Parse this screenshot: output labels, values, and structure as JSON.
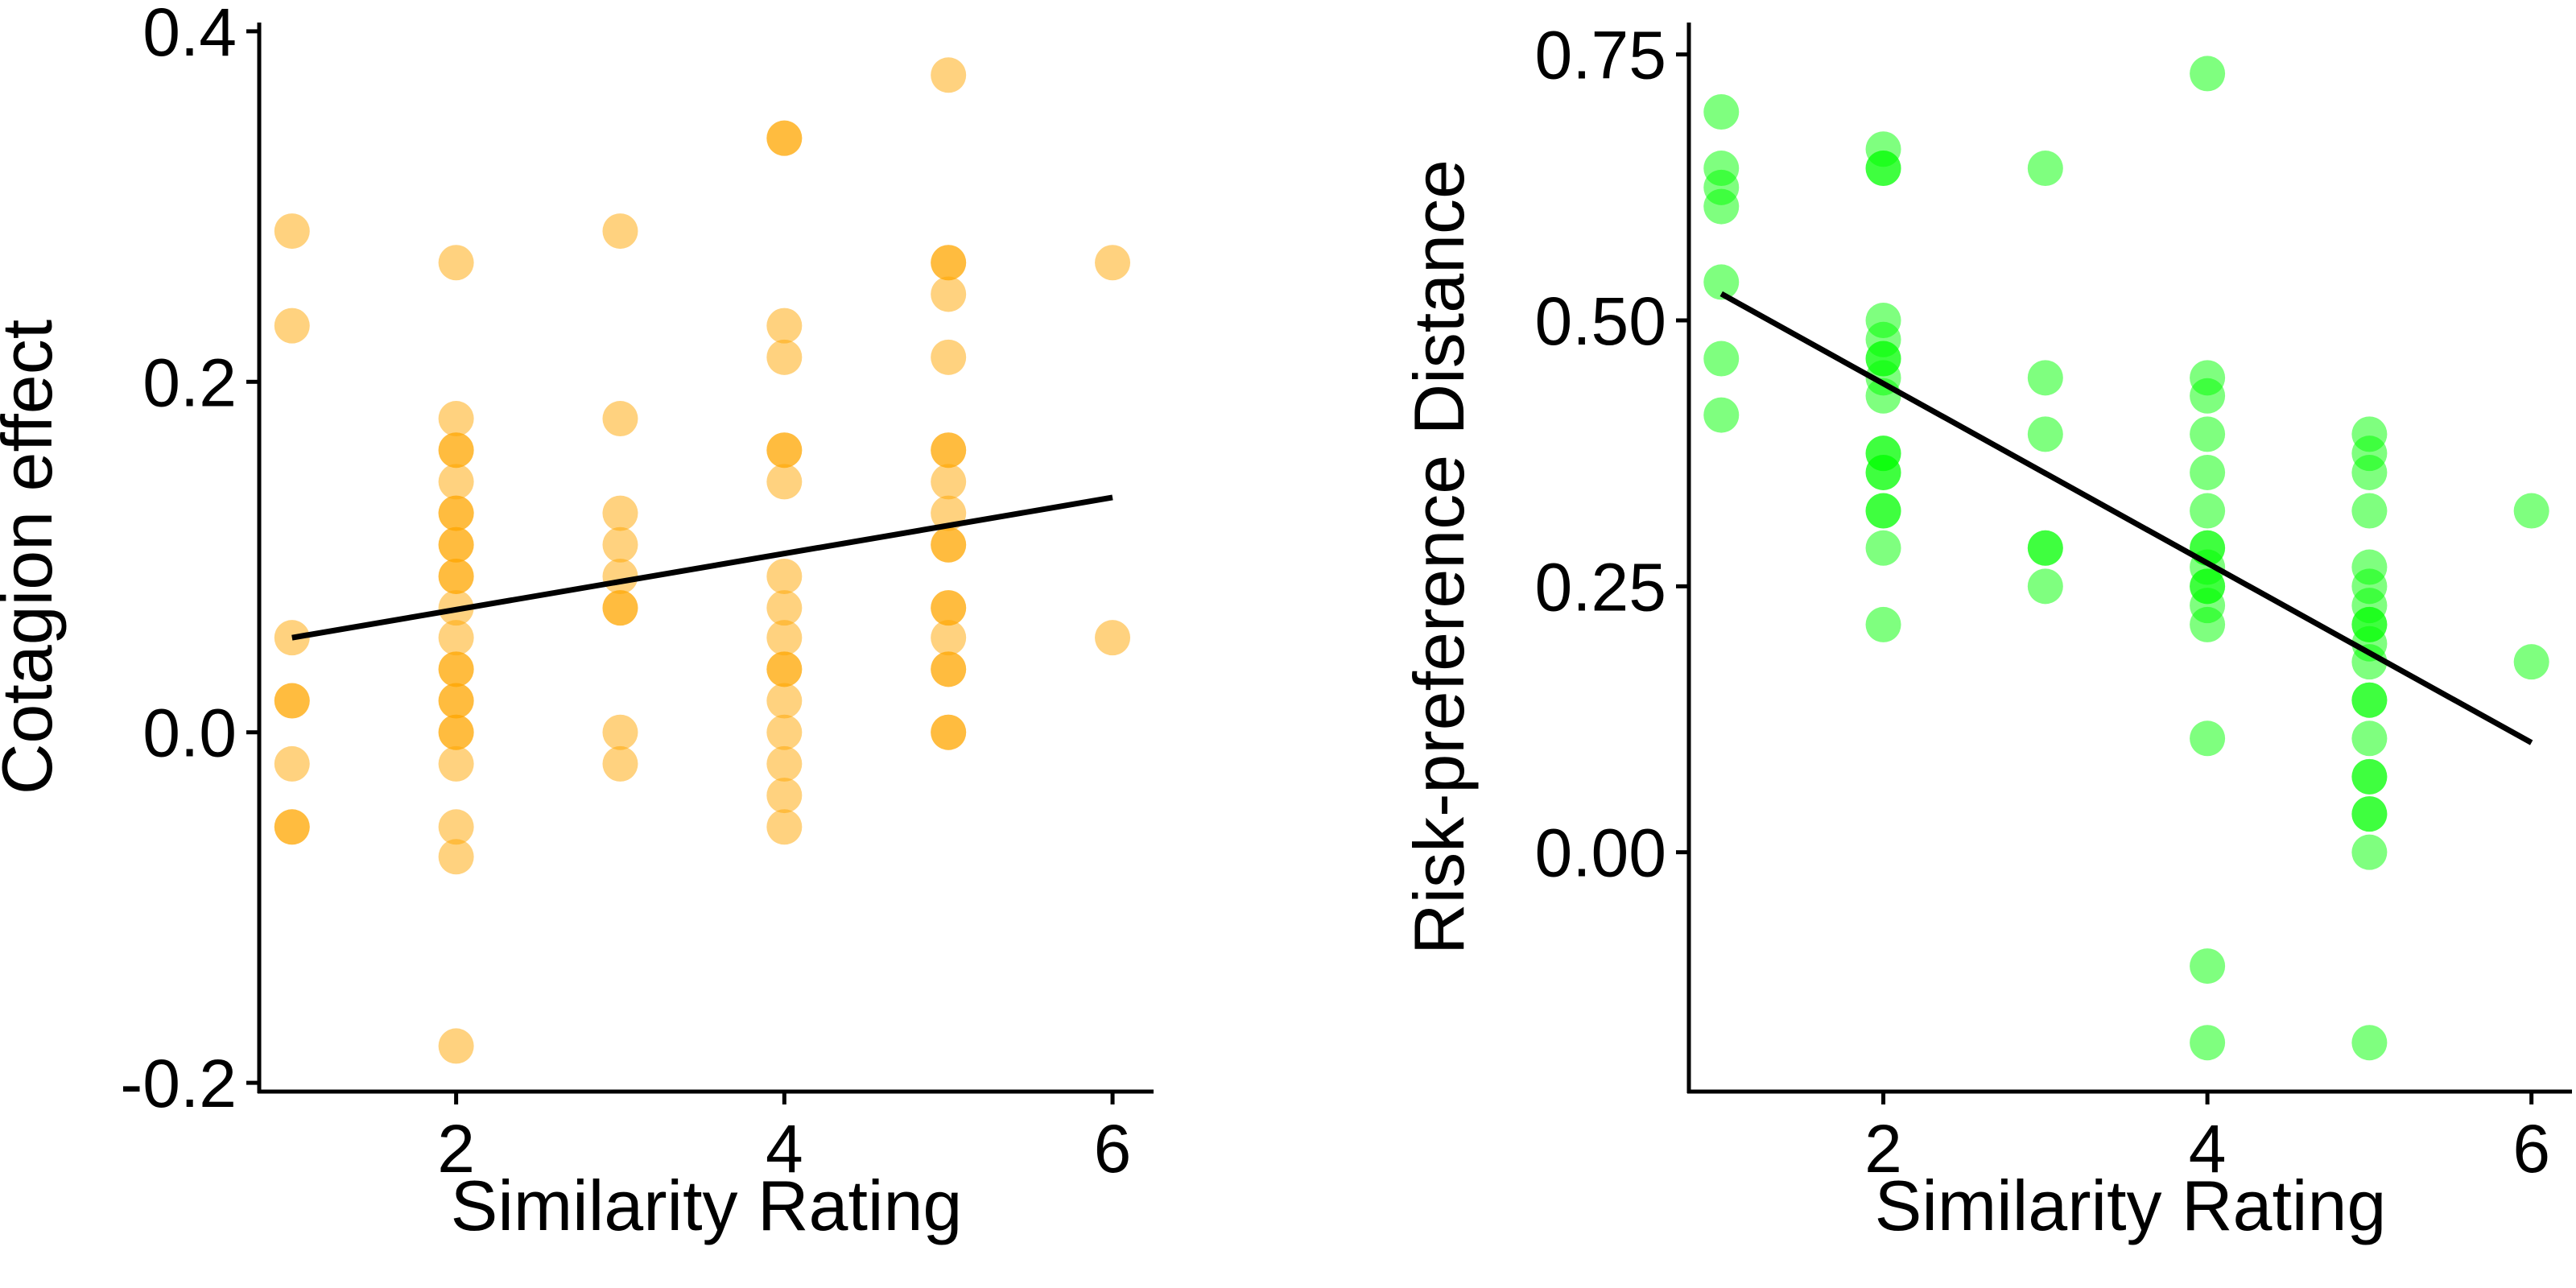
{
  "chart_data": [
    {
      "type": "scatter",
      "title": "",
      "xlabel": "Similarity Rating",
      "ylabel": "Cotagion effect",
      "xlim": [
        0.8,
        6.25
      ],
      "ylim": [
        -0.205,
        0.405
      ],
      "x_ticks": [
        2,
        4,
        6
      ],
      "y_ticks": [
        -0.2,
        0.0,
        0.2,
        0.4
      ],
      "y_tick_labels": [
        "-0.2",
        "0.0",
        "0.2",
        "0.4"
      ],
      "grid": false,
      "point_color": "#FFA500",
      "point_opacity": 0.5,
      "points": [
        [
          1,
          0.286
        ],
        [
          1,
          0.232
        ],
        [
          1,
          0.054
        ],
        [
          1,
          0.018
        ],
        [
          1,
          0.018
        ],
        [
          1,
          -0.018
        ],
        [
          1,
          -0.054
        ],
        [
          1,
          -0.054
        ],
        [
          2,
          0.268
        ],
        [
          2,
          0.179
        ],
        [
          2,
          0.161
        ],
        [
          2,
          0.161
        ],
        [
          2,
          0.143
        ],
        [
          2,
          0.125
        ],
        [
          2,
          0.125
        ],
        [
          2,
          0.107
        ],
        [
          2,
          0.107
        ],
        [
          2,
          0.089
        ],
        [
          2,
          0.089
        ],
        [
          2,
          0.071
        ],
        [
          2,
          0.054
        ],
        [
          2,
          0.036
        ],
        [
          2,
          0.036
        ],
        [
          2,
          0.018
        ],
        [
          2,
          0.018
        ],
        [
          2,
          0.0
        ],
        [
          2,
          0.0
        ],
        [
          2,
          -0.018
        ],
        [
          2,
          -0.054
        ],
        [
          2,
          -0.071
        ],
        [
          2,
          -0.179
        ],
        [
          3,
          0.286
        ],
        [
          3,
          0.179
        ],
        [
          3,
          0.125
        ],
        [
          3,
          0.107
        ],
        [
          3,
          0.089
        ],
        [
          3,
          0.071
        ],
        [
          3,
          0.071
        ],
        [
          3,
          0.0
        ],
        [
          3,
          -0.018
        ],
        [
          4,
          0.339
        ],
        [
          4,
          0.339
        ],
        [
          4,
          0.232
        ],
        [
          4,
          0.214
        ],
        [
          4,
          0.161
        ],
        [
          4,
          0.161
        ],
        [
          4,
          0.143
        ],
        [
          4,
          0.089
        ],
        [
          4,
          0.071
        ],
        [
          4,
          0.054
        ],
        [
          4,
          0.036
        ],
        [
          4,
          0.036
        ],
        [
          4,
          0.018
        ],
        [
          4,
          0.0
        ],
        [
          4,
          -0.018
        ],
        [
          4,
          -0.036
        ],
        [
          4,
          -0.054
        ],
        [
          5,
          0.375
        ],
        [
          5,
          0.268
        ],
        [
          5,
          0.268
        ],
        [
          5,
          0.25
        ],
        [
          5,
          0.214
        ],
        [
          5,
          0.161
        ],
        [
          5,
          0.161
        ],
        [
          5,
          0.143
        ],
        [
          5,
          0.125
        ],
        [
          5,
          0.107
        ],
        [
          5,
          0.107
        ],
        [
          5,
          0.071
        ],
        [
          5,
          0.071
        ],
        [
          5,
          0.054
        ],
        [
          5,
          0.036
        ],
        [
          5,
          0.036
        ],
        [
          5,
          0.0
        ],
        [
          5,
          0.0
        ],
        [
          6,
          0.268
        ],
        [
          6,
          0.054
        ]
      ],
      "trend_line": {
        "x": [
          1,
          6
        ],
        "y": [
          0.054,
          0.134
        ]
      }
    },
    {
      "type": "scatter",
      "title": "",
      "xlabel": "Similarity Rating",
      "ylabel": "Risk-preference Distance",
      "xlim": [
        0.8,
        6.25
      ],
      "ylim": [
        -0.225,
        0.78
      ],
      "x_ticks": [
        2,
        4,
        6
      ],
      "y_ticks": [
        0.0,
        0.25,
        0.5,
        0.75
      ],
      "y_tick_labels": [
        "0.00",
        "0.25",
        "0.50",
        "0.75"
      ],
      "grid": false,
      "point_color": "#00FF00",
      "point_opacity": 0.5,
      "points": [
        [
          1,
          0.696
        ],
        [
          1,
          0.643
        ],
        [
          1,
          0.625
        ],
        [
          1,
          0.607
        ],
        [
          1,
          0.536
        ],
        [
          1,
          0.464
        ],
        [
          1,
          0.411
        ],
        [
          2,
          0.661
        ],
        [
          2,
          0.643
        ],
        [
          2,
          0.643
        ],
        [
          2,
          0.5
        ],
        [
          2,
          0.482
        ],
        [
          2,
          0.464
        ],
        [
          2,
          0.464
        ],
        [
          2,
          0.446
        ],
        [
          2,
          0.429
        ],
        [
          2,
          0.375
        ],
        [
          2,
          0.375
        ],
        [
          2,
          0.357
        ],
        [
          2,
          0.357
        ],
        [
          2,
          0.321
        ],
        [
          2,
          0.321
        ],
        [
          2,
          0.286
        ],
        [
          2,
          0.214
        ],
        [
          3,
          0.643
        ],
        [
          3,
          0.446
        ],
        [
          3,
          0.393
        ],
        [
          3,
          0.286
        ],
        [
          3,
          0.286
        ],
        [
          3,
          0.25
        ],
        [
          4,
          0.732
        ],
        [
          4,
          0.446
        ],
        [
          4,
          0.429
        ],
        [
          4,
          0.393
        ],
        [
          4,
          0.357
        ],
        [
          4,
          0.321
        ],
        [
          4,
          0.286
        ],
        [
          4,
          0.286
        ],
        [
          4,
          0.268
        ],
        [
          4,
          0.25
        ],
        [
          4,
          0.25
        ],
        [
          4,
          0.232
        ],
        [
          4,
          0.214
        ],
        [
          4,
          0.107
        ],
        [
          4,
          -0.107
        ],
        [
          4,
          -0.179
        ],
        [
          5,
          0.393
        ],
        [
          5,
          0.375
        ],
        [
          5,
          0.357
        ],
        [
          5,
          0.321
        ],
        [
          5,
          0.268
        ],
        [
          5,
          0.25
        ],
        [
          5,
          0.232
        ],
        [
          5,
          0.214
        ],
        [
          5,
          0.214
        ],
        [
          5,
          0.196
        ],
        [
          5,
          0.179
        ],
        [
          5,
          0.143
        ],
        [
          5,
          0.143
        ],
        [
          5,
          0.107
        ],
        [
          5,
          0.071
        ],
        [
          5,
          0.071
        ],
        [
          5,
          0.036
        ],
        [
          5,
          0.036
        ],
        [
          5,
          0.0
        ],
        [
          5,
          -0.179
        ],
        [
          6,
          0.321
        ],
        [
          6,
          0.179
        ]
      ],
      "trend_line": {
        "x": [
          1,
          6
        ],
        "y": [
          0.525,
          0.103
        ]
      }
    }
  ]
}
